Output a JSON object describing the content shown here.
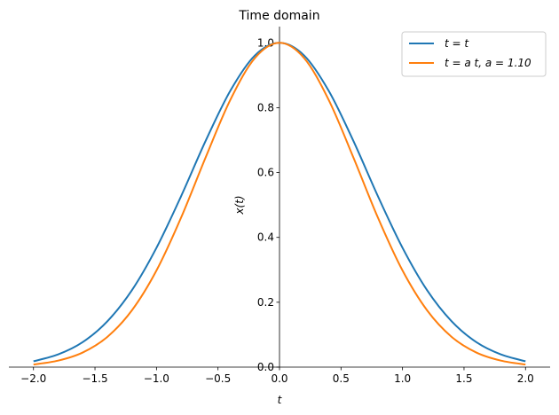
{
  "chart_data": {
    "type": "line",
    "title": "Time domain",
    "xlabel": "t",
    "ylabel": "x(t)",
    "xlim": [
      -2.2,
      2.2
    ],
    "ylim": [
      0.0,
      1.05
    ],
    "x_ticks": [
      "−2.0",
      "−1.5",
      "−1.0",
      "−0.5",
      "0.0",
      "0.5",
      "1.0",
      "1.5",
      "2.0"
    ],
    "x_tick_values": [
      -2.0,
      -1.5,
      -1.0,
      -0.5,
      0.0,
      0.5,
      1.0,
      1.5,
      2.0
    ],
    "y_ticks": [
      "0.0",
      "0.2",
      "0.4",
      "0.6",
      "0.8",
      "1.0"
    ],
    "y_tick_values": [
      0.0,
      0.2,
      0.4,
      0.6,
      0.8,
      1.0
    ],
    "grid": false,
    "legend_position": "top-right",
    "x": [
      -2.0,
      -1.8,
      -1.6,
      -1.4,
      -1.2,
      -1.0,
      -0.8,
      -0.6,
      -0.4,
      -0.2,
      0.0,
      0.2,
      0.4,
      0.6,
      0.8,
      1.0,
      1.2,
      1.4,
      1.6,
      1.8,
      2.0
    ],
    "series": [
      {
        "name": "t = t",
        "color": "#1f77b4",
        "values": [
          0.018,
          0.039,
          0.077,
          0.141,
          0.237,
          0.368,
          0.527,
          0.698,
          0.852,
          0.961,
          1.0,
          0.961,
          0.852,
          0.698,
          0.527,
          0.368,
          0.237,
          0.141,
          0.077,
          0.039,
          0.018
        ]
      },
      {
        "name": "t = a t, a = 1.10",
        "color": "#ff7f0e",
        "values": [
          0.008,
          0.02,
          0.045,
          0.093,
          0.175,
          0.298,
          0.461,
          0.647,
          0.824,
          0.953,
          1.0,
          0.953,
          0.824,
          0.647,
          0.461,
          0.298,
          0.175,
          0.093,
          0.045,
          0.02,
          0.008
        ]
      }
    ]
  }
}
